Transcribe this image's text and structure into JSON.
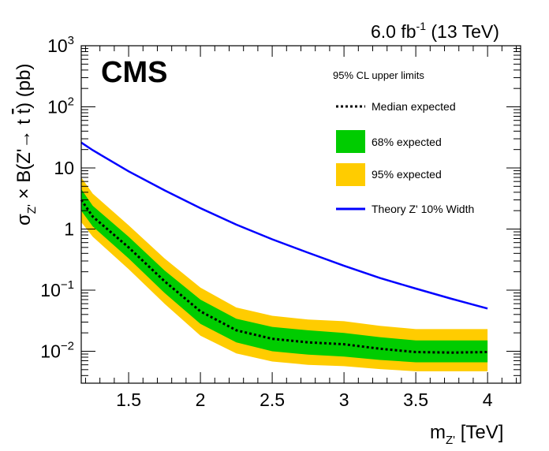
{
  "chart_data": {
    "type": "line",
    "lumi_label": "6.0 fb",
    "lumi_exponent": "-1",
    "energy_label": "(13 TeV)",
    "experiment_label": "CMS",
    "xlabel_main": "m",
    "xlabel_sub": "Z'",
    "xlabel_unit": "[TeV]",
    "ylabel": {
      "sigma": "σ",
      "sub": "Z'",
      "mid": " × B(Z'→ t ",
      "tbar": "t",
      "end": ") (pb)"
    },
    "xlim": [
      1.17,
      4.23
    ],
    "ylim": [
      0.003,
      1000
    ],
    "y_scale": "log",
    "x_ticks": [
      {
        "value": 1.5,
        "label": "1.5"
      },
      {
        "value": 2.0,
        "label": "2"
      },
      {
        "value": 2.5,
        "label": "2.5"
      },
      {
        "value": 3.0,
        "label": "3"
      },
      {
        "value": 3.5,
        "label": "3.5"
      },
      {
        "value": 4.0,
        "label": "4"
      }
    ],
    "y_ticks": [
      {
        "value": 0.01,
        "base": "10",
        "exp": "−2"
      },
      {
        "value": 0.1,
        "base": "10",
        "exp": "−1"
      },
      {
        "value": 1,
        "base": "1",
        "exp": ""
      },
      {
        "value": 10,
        "base": "10",
        "exp": ""
      },
      {
        "value": 100,
        "base": "10",
        "exp": "2"
      },
      {
        "value": 1000,
        "base": "10",
        "exp": "3"
      }
    ],
    "legend_header": "95% CL upper limits",
    "x": [
      1.17,
      1.25,
      1.5,
      1.75,
      2.0,
      2.25,
      2.5,
      2.75,
      3.0,
      3.25,
      3.5,
      3.75,
      4.0
    ],
    "series": [
      {
        "name": "Median expected",
        "style": "dotted",
        "color": "#000000",
        "values": [
          3.0,
          1.6,
          0.5,
          0.14,
          0.045,
          0.022,
          0.016,
          0.014,
          0.013,
          0.011,
          0.0097,
          0.0095,
          0.0097
        ]
      },
      {
        "name": "68% expected",
        "style": "band",
        "color": "#00cc00",
        "low": [
          2.0,
          1.1,
          0.33,
          0.09,
          0.028,
          0.014,
          0.01,
          0.0088,
          0.0082,
          0.0072,
          0.0066,
          0.0066,
          0.0066
        ],
        "high": [
          4.5,
          2.4,
          0.75,
          0.21,
          0.07,
          0.034,
          0.025,
          0.022,
          0.02,
          0.017,
          0.015,
          0.015,
          0.015
        ]
      },
      {
        "name": "95% expected",
        "style": "band",
        "color": "#ffcc00",
        "low": [
          1.3,
          0.75,
          0.22,
          0.06,
          0.018,
          0.0092,
          0.0068,
          0.006,
          0.0057,
          0.0051,
          0.0047,
          0.0047,
          0.0047
        ],
        "high": [
          7.0,
          3.8,
          1.15,
          0.33,
          0.11,
          0.052,
          0.038,
          0.033,
          0.031,
          0.026,
          0.023,
          0.023,
          0.023
        ]
      },
      {
        "name": "Theory Z' 10% Width",
        "style": "solid",
        "color": "#0000ff",
        "values": [
          26,
          19.5,
          8.8,
          4.3,
          2.2,
          1.18,
          0.68,
          0.41,
          0.25,
          0.158,
          0.106,
          0.072,
          0.05
        ]
      }
    ],
    "grid": false,
    "legend_position": "top-right"
  }
}
